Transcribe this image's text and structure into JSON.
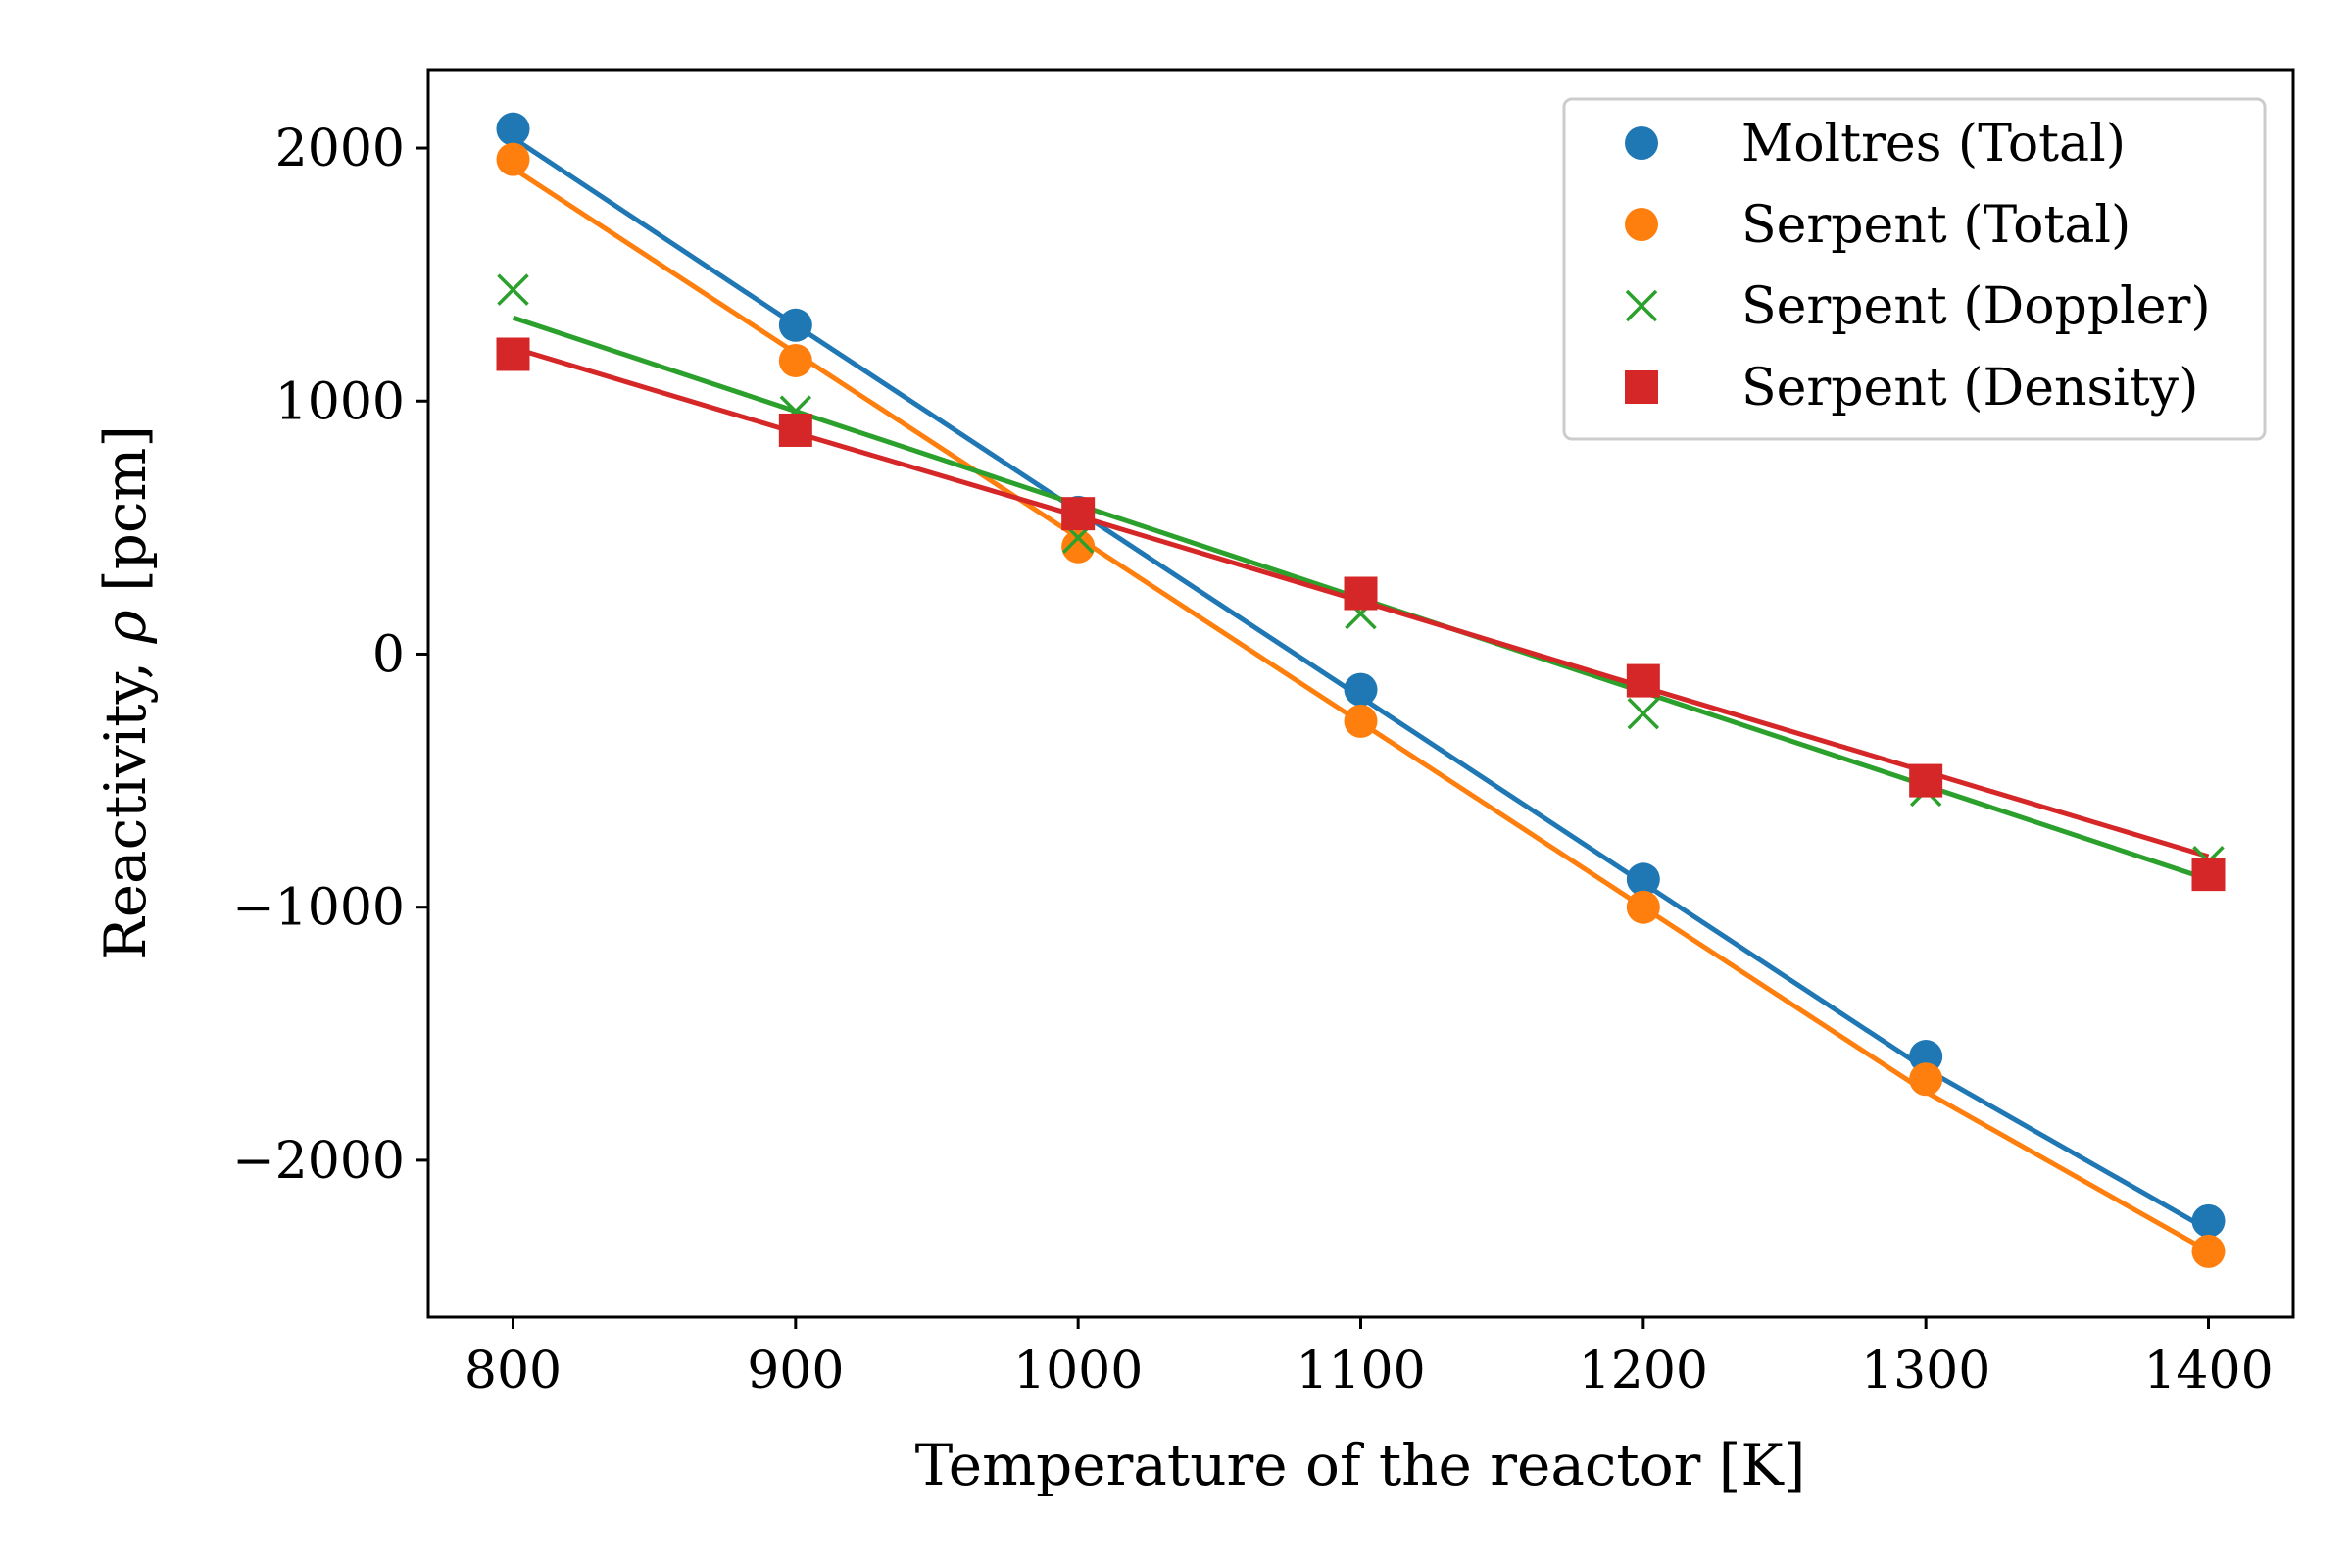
{
  "chart_data": {
    "type": "scatter",
    "title": "",
    "xlabel": "Temperature of the reactor [K]",
    "ylabel_text": "Reactivity, ",
    "ylabel_symbol": "ρ",
    "ylabel_unit": " [pcm]",
    "xlim": [
      770,
      1430
    ],
    "ylim": [
      -2620,
      2310
    ],
    "xticks": [
      800,
      900,
      1000,
      1100,
      1200,
      1300,
      1400
    ],
    "xtick_labels": [
      "800",
      "900",
      "1000",
      "1100",
      "1200",
      "1300",
      "1400"
    ],
    "yticks": [
      2000,
      1000,
      0,
      -1000,
      -2000
    ],
    "ytick_labels": [
      "2000",
      "1000",
      "0",
      "−1000",
      "−2000"
    ],
    "grid": false,
    "legend_position": "top-right",
    "x": [
      800,
      900,
      1000,
      1100,
      1200,
      1300,
      1400
    ],
    "series": [
      {
        "name": "Moltres (Total)",
        "marker": "circle",
        "color": "#1f77b4",
        "values": [
          2075,
          1300,
          560,
          -140,
          -890,
          -1590,
          -2240
        ],
        "fit": [
          2040,
          1300,
          565,
          -170,
          -905,
          -1640,
          -2275
        ]
      },
      {
        "name": "Serpent (Total)",
        "marker": "circle",
        "color": "#ff7f0e",
        "values": [
          1955,
          1160,
          425,
          -265,
          -1000,
          -1680,
          -2360
        ],
        "fit": [
          1920,
          1190,
          460,
          -270,
          -1000,
          -1730,
          -2360
        ]
      },
      {
        "name": "Serpent (Doppler)",
        "marker": "x",
        "color": "#2ca02c",
        "values": [
          1440,
          960,
          460,
          160,
          -235,
          -540,
          -820
        ],
        "fit": [
          1330,
          960,
          590,
          220,
          -150,
          -520,
          -890
        ]
      },
      {
        "name": "Serpent (Density)",
        "marker": "square",
        "color": "#d62728",
        "values": [
          1185,
          885,
          555,
          240,
          -105,
          -500,
          -870
        ],
        "fit": [
          1210,
          875,
          545,
          210,
          -130,
          -465,
          -800
        ]
      }
    ]
  }
}
